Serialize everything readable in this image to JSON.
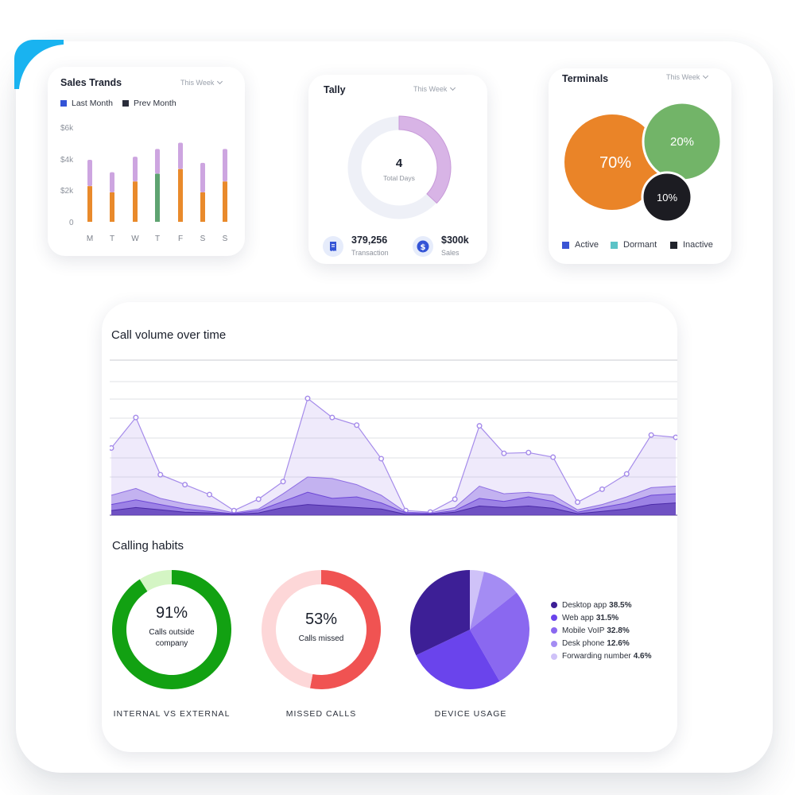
{
  "sales_trends": {
    "title": "Sales Trands",
    "period": "This Week",
    "legend": [
      {
        "label": "Last Month",
        "color": "#3353d6"
      },
      {
        "label": "Prev Month",
        "color": "#2a2d3a"
      }
    ],
    "y_ticks": [
      "$6k",
      "$4k",
      "$2k",
      "0"
    ],
    "chart_data": {
      "type": "bar",
      "categories": [
        "M",
        "T",
        "W",
        "T",
        "F",
        "S",
        "S"
      ],
      "series": [
        {
          "name": "Last Month",
          "values": [
            2300,
            1900,
            2600,
            3100,
            3400,
            1900,
            2600
          ],
          "colors": [
            "#e98a2b",
            "#e98a2b",
            "#e98a2b",
            "#5ea371",
            "#e98a2b",
            "#e98a2b",
            "#e98a2b"
          ]
        },
        {
          "name": "Prev Month",
          "values": [
            1700,
            1300,
            1600,
            1600,
            1700,
            1900,
            2100
          ],
          "color": "#cda5e0"
        }
      ],
      "ylim": [
        0,
        6000
      ]
    }
  },
  "tally": {
    "title": "Tally",
    "period": "This Week",
    "center_value": "4",
    "center_label": "Total Days",
    "ring_fraction": 0.37,
    "stats": [
      {
        "value": "379,256",
        "label": "Transaction",
        "icon": "receipt-icon"
      },
      {
        "value": "$300k",
        "label": "Sales",
        "icon": "dollar-icon"
      }
    ]
  },
  "terminals": {
    "title": "Terminals",
    "period": "This Week",
    "bubbles": [
      {
        "label": "70%",
        "value": 70,
        "color": "#ea8428"
      },
      {
        "label": "20%",
        "value": 20,
        "color": "#72b468"
      },
      {
        "label": "10%",
        "value": 10,
        "color": "#1c1c22"
      }
    ],
    "legend": [
      {
        "label": "Active",
        "color": "#3b55d4"
      },
      {
        "label": "Dormant",
        "color": "#5cc3c7"
      },
      {
        "label": "Inactive",
        "color": "#20232b"
      }
    ]
  },
  "call_volume": {
    "title": "Call volume over time",
    "chart_data": {
      "type": "area",
      "x": [
        1,
        2,
        3,
        4,
        5,
        6,
        7,
        8,
        9,
        10,
        11,
        12,
        13,
        14,
        15,
        16,
        17,
        18,
        19,
        20,
        21,
        22,
        23,
        24
      ],
      "series": [
        {
          "values": [
            88,
            128,
            53,
            40,
            27,
            6,
            21,
            44,
            153,
            128,
            118,
            74,
            6,
            4,
            21,
            117,
            81,
            82,
            76,
            17,
            34,
            54,
            105,
            102
          ],
          "color": "#a58bea"
        },
        {
          "values": [
            26,
            35,
            22,
            15,
            10,
            3,
            8,
            28,
            50,
            48,
            40,
            26,
            4,
            3,
            10,
            38,
            28,
            30,
            26,
            7,
            14,
            24,
            36,
            38
          ],
          "color": "#8f6fe3"
        },
        {
          "values": [
            14,
            20,
            14,
            8,
            5,
            2,
            6,
            18,
            30,
            22,
            24,
            16,
            3,
            2,
            6,
            22,
            18,
            24,
            18,
            4,
            10,
            16,
            26,
            28
          ],
          "color": "#6d47d6"
        },
        {
          "values": [
            6,
            10,
            7,
            4,
            3,
            1,
            3,
            10,
            14,
            12,
            10,
            8,
            1,
            1,
            4,
            12,
            10,
            12,
            9,
            2,
            5,
            8,
            14,
            16
          ],
          "color": "#4b2aa8"
        }
      ]
    }
  },
  "calling_habits": {
    "title": "Calling habits",
    "internal_external": {
      "value": "91%",
      "label": "Calls outside company",
      "fraction": 0.91,
      "color": "#12a112",
      "rest_color": "#d4f5c4",
      "caption": "INTERNAL VS EXTERNAL"
    },
    "missed_calls": {
      "value": "53%",
      "label": "Calls missed",
      "fraction": 0.53,
      "color": "#f05352",
      "rest_color": "#fdd7d8",
      "caption": "MISSED CALLS"
    },
    "device_usage": {
      "caption": "DEVICE USAGE",
      "chart_data": {
        "type": "pie",
        "slices": [
          {
            "label": "Desktop app",
            "value": 38.5,
            "display": "38.5%",
            "color": "#3d1f96"
          },
          {
            "label": "Web app",
            "value": 31.5,
            "display": "31.5%",
            "color": "#6a44ec"
          },
          {
            "label": "Mobile VoIP",
            "value": 32.8,
            "display": "32.8%",
            "color": "#8a68f0"
          },
          {
            "label": "Desk phone",
            "value": 12.6,
            "display": "12.6%",
            "color": "#a48cf3"
          },
          {
            "label": "Forwarding number",
            "value": 4.6,
            "display": "4.6%",
            "color": "#cfc2f8"
          }
        ]
      }
    }
  }
}
